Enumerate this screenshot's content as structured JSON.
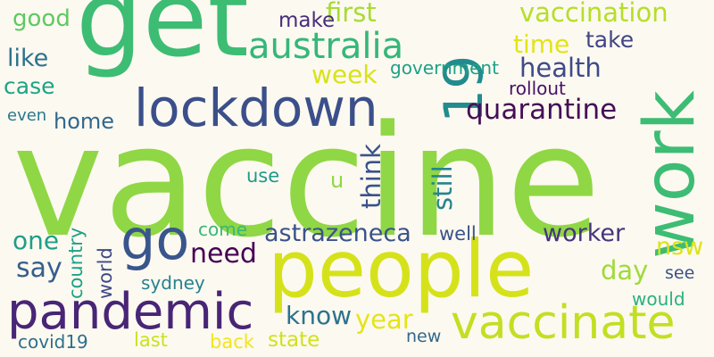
{
  "background": "#fcf9f0",
  "palette": [
    "#8fd744",
    "#3dbc74",
    "#21918c",
    "#2c728e",
    "#3b528b",
    "#472d7b",
    "#440154",
    "#c8e020",
    "#fde725",
    "#addc30",
    "#27ad81"
  ],
  "words": [
    {
      "text": "vaccine",
      "color": "#8fd744"
    },
    {
      "text": "get",
      "color": "#3dbc74"
    },
    {
      "text": "work",
      "color": "#3dbc74"
    },
    {
      "text": "people",
      "color": "#d5e21a"
    },
    {
      "text": "lockdown",
      "color": "#3b4f8a"
    },
    {
      "text": "pandemic",
      "color": "#482576"
    },
    {
      "text": "go",
      "color": "#39568c"
    },
    {
      "text": "vaccinate",
      "color": "#c2df23"
    },
    {
      "text": "australia",
      "color": "#35b779"
    },
    {
      "text": "19",
      "color": "#228b8d"
    },
    {
      "text": "quarantine",
      "color": "#440f57"
    },
    {
      "text": "health",
      "color": "#3e4a89"
    },
    {
      "text": "vaccination",
      "color": "#b5de2b"
    },
    {
      "text": "first",
      "color": "#a8db34"
    },
    {
      "text": "week",
      "color": "#d8e219"
    },
    {
      "text": "time",
      "color": "#e2e418"
    },
    {
      "text": "take",
      "color": "#414487"
    },
    {
      "text": "astrazeneca",
      "color": "#3b528b"
    },
    {
      "text": "worker",
      "color": "#46337e"
    },
    {
      "text": "need",
      "color": "#440154"
    },
    {
      "text": "know",
      "color": "#2c728e"
    },
    {
      "text": "year",
      "color": "#e5e419"
    },
    {
      "text": "day",
      "color": "#a0da39"
    },
    {
      "text": "nsw",
      "color": "#dde318"
    },
    {
      "text": "say",
      "color": "#355f8d"
    },
    {
      "text": "one",
      "color": "#1f9e89"
    },
    {
      "text": "home",
      "color": "#31688e"
    },
    {
      "text": "good",
      "color": "#5ec962"
    },
    {
      "text": "like",
      "color": "#2c728e"
    },
    {
      "text": "case",
      "color": "#20a386"
    },
    {
      "text": "make",
      "color": "#472d7b"
    },
    {
      "text": "government",
      "color": "#1fa088"
    },
    {
      "text": "rollout",
      "color": "#471164"
    },
    {
      "text": "even",
      "color": "#2a788e"
    },
    {
      "text": "use",
      "color": "#1f9a8a"
    },
    {
      "text": "u",
      "color": "#90d743"
    },
    {
      "text": "think",
      "color": "#3b528b"
    },
    {
      "text": "still",
      "color": "#25848e"
    },
    {
      "text": "well",
      "color": "#3b528b"
    },
    {
      "text": "come",
      "color": "#37b878"
    },
    {
      "text": "country",
      "color": "#1fa187"
    },
    {
      "text": "world",
      "color": "#3e4989"
    },
    {
      "text": "sydney",
      "color": "#26828e"
    },
    {
      "text": "see",
      "color": "#3b528b"
    },
    {
      "text": "would",
      "color": "#2ab07f"
    },
    {
      "text": "covid19",
      "color": "#2d708e"
    },
    {
      "text": "last",
      "color": "#cae11f"
    },
    {
      "text": "back",
      "color": "#f1e51d"
    },
    {
      "text": "state",
      "color": "#d0e11c"
    },
    {
      "text": "new",
      "color": "#31688e"
    }
  ]
}
